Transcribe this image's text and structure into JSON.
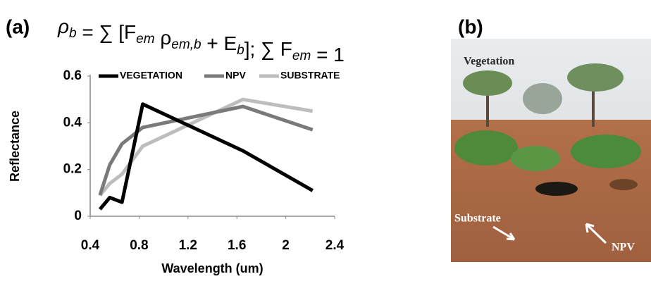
{
  "chart_data": {
    "type": "line",
    "panel_label": "(a)",
    "formula": [
      {
        "t": "ρ",
        "sub": "b"
      },
      {
        "t": " = ∑ [F",
        "sub": "em"
      },
      {
        "t": " ρ",
        "sub": "em,b"
      },
      {
        "t": " + E",
        "sub": "b"
      },
      {
        "t": "]; ∑ F",
        "sub": "em"
      },
      {
        "t": " = 1"
      }
    ],
    "x_label": "Wavelength (um)",
    "y_label": "Reflectance",
    "x": [
      0.48,
      0.56,
      0.66,
      0.83,
      1.65,
      2.22
    ],
    "series": [
      {
        "name": "VEGETATION",
        "color": "#000000",
        "values": [
          0.03,
          0.08,
          0.06,
          0.48,
          0.28,
          0.11
        ]
      },
      {
        "name": "NPV",
        "color": "#7a7a7a",
        "values": [
          0.09,
          0.22,
          0.31,
          0.38,
          0.47,
          0.37
        ]
      },
      {
        "name": "SUBSTRATE",
        "color": "#bdbdbd",
        "values": [
          0.09,
          0.14,
          0.18,
          0.3,
          0.5,
          0.45
        ]
      }
    ],
    "xlim": [
      0.4,
      2.4
    ],
    "xticks": [
      0.4,
      0.8,
      1.2,
      1.6,
      2,
      2.4
    ],
    "ylim": [
      0,
      0.6
    ],
    "yticks": [
      0,
      0.2,
      0.4,
      0.6
    ],
    "grid": false,
    "legend": "top"
  },
  "photo": {
    "panel_label": "(b)",
    "labels": [
      "Vegetation",
      "Substrate",
      "NPV"
    ]
  }
}
